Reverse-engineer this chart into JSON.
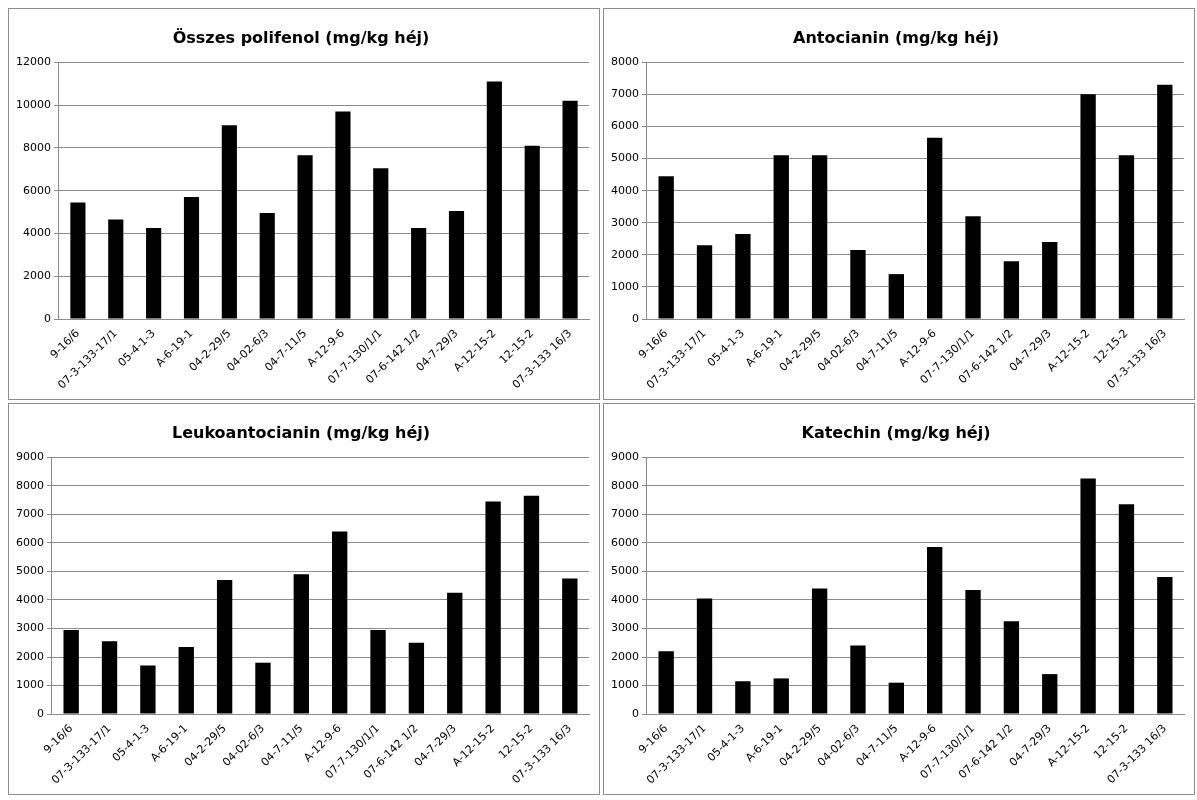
{
  "chart_data": [
    {
      "type": "bar",
      "title": "Összes polifenol (mg/kg héj)",
      "categories": [
        "9-16/6",
        "07-3-133-17/1",
        "05-4-1-3",
        "A-6-19-1",
        "04-2-29/5",
        "04-02-6/3",
        "04-7-11/5",
        "A-12-9-6",
        "07-7-130/1/1",
        "07-6-142 1/2",
        "04-7-29/3",
        "A-12-15-2",
        "12-15-2",
        "07-3-133 16/3"
      ],
      "values": [
        5450,
        4650,
        4250,
        5700,
        9050,
        4950,
        7650,
        9700,
        7050,
        4250,
        5050,
        11100,
        8100,
        10200
      ],
      "color": "#000000",
      "ylim": [
        0,
        12000
      ],
      "yticks": [
        0,
        2000,
        4000,
        6000,
        8000,
        10000,
        12000
      ],
      "grid": "y"
    },
    {
      "type": "bar",
      "title": "Antocianin (mg/kg héj)",
      "categories": [
        "9-16/6",
        "07-3-133-17/1",
        "05-4-1-3",
        "A-6-19-1",
        "04-2-29/5",
        "04-02-6/3",
        "04-7-11/5",
        "A-12-9-6",
        "07-7-130/1/1",
        "07-6-142 1/2",
        "04-7-29/3",
        "A-12-15-2",
        "12-15-2",
        "07-3-133 16/3"
      ],
      "values": [
        4450,
        2300,
        2650,
        5100,
        5100,
        2150,
        1400,
        5650,
        3200,
        1800,
        2400,
        7000,
        5100,
        7300
      ],
      "color": "#000000",
      "ylim": [
        0,
        8000
      ],
      "yticks": [
        0,
        1000,
        2000,
        3000,
        4000,
        5000,
        6000,
        7000,
        8000
      ],
      "grid": "y"
    },
    {
      "type": "bar",
      "title": "Leukoantocianin (mg/kg héj)",
      "categories": [
        "9-16/6",
        "07-3-133-17/1",
        "05-4-1-3",
        "A-6-19-1",
        "04-2-29/5",
        "04-02-6/3",
        "04-7-11/5",
        "A-12-9-6",
        "07-7-130/1/1",
        "07-6-142 1/2",
        "04-7-29/3",
        "A-12-15-2",
        "12-15-2",
        "07-3-133 16/3"
      ],
      "values": [
        2950,
        2550,
        1700,
        2350,
        4700,
        1800,
        4900,
        6400,
        2950,
        2500,
        4250,
        7450,
        7650,
        4750
      ],
      "color": "#000000",
      "ylim": [
        0,
        9000
      ],
      "yticks": [
        0,
        1000,
        2000,
        3000,
        4000,
        5000,
        6000,
        7000,
        8000,
        9000
      ],
      "grid": "y"
    },
    {
      "type": "bar",
      "title": "Katechin (mg/kg héj)",
      "categories": [
        "9-16/6",
        "07-3-133-17/1",
        "05-4-1-3",
        "A-6-19-1",
        "04-2-29/5",
        "04-02-6/3",
        "04-7-11/5",
        "A-12-9-6",
        "07-7-130/1/1",
        "07-6-142 1/2",
        "04-7-29/3",
        "A-12-15-2",
        "12-15-2",
        "07-3-133 16/3"
      ],
      "values": [
        2200,
        4050,
        1150,
        1250,
        4400,
        2400,
        1100,
        5850,
        4350,
        3250,
        1400,
        8250,
        7350,
        4800
      ],
      "color": "#000000",
      "ylim": [
        0,
        9000
      ],
      "yticks": [
        0,
        1000,
        2000,
        3000,
        4000,
        5000,
        6000,
        7000,
        8000,
        9000
      ],
      "grid": "y"
    }
  ]
}
